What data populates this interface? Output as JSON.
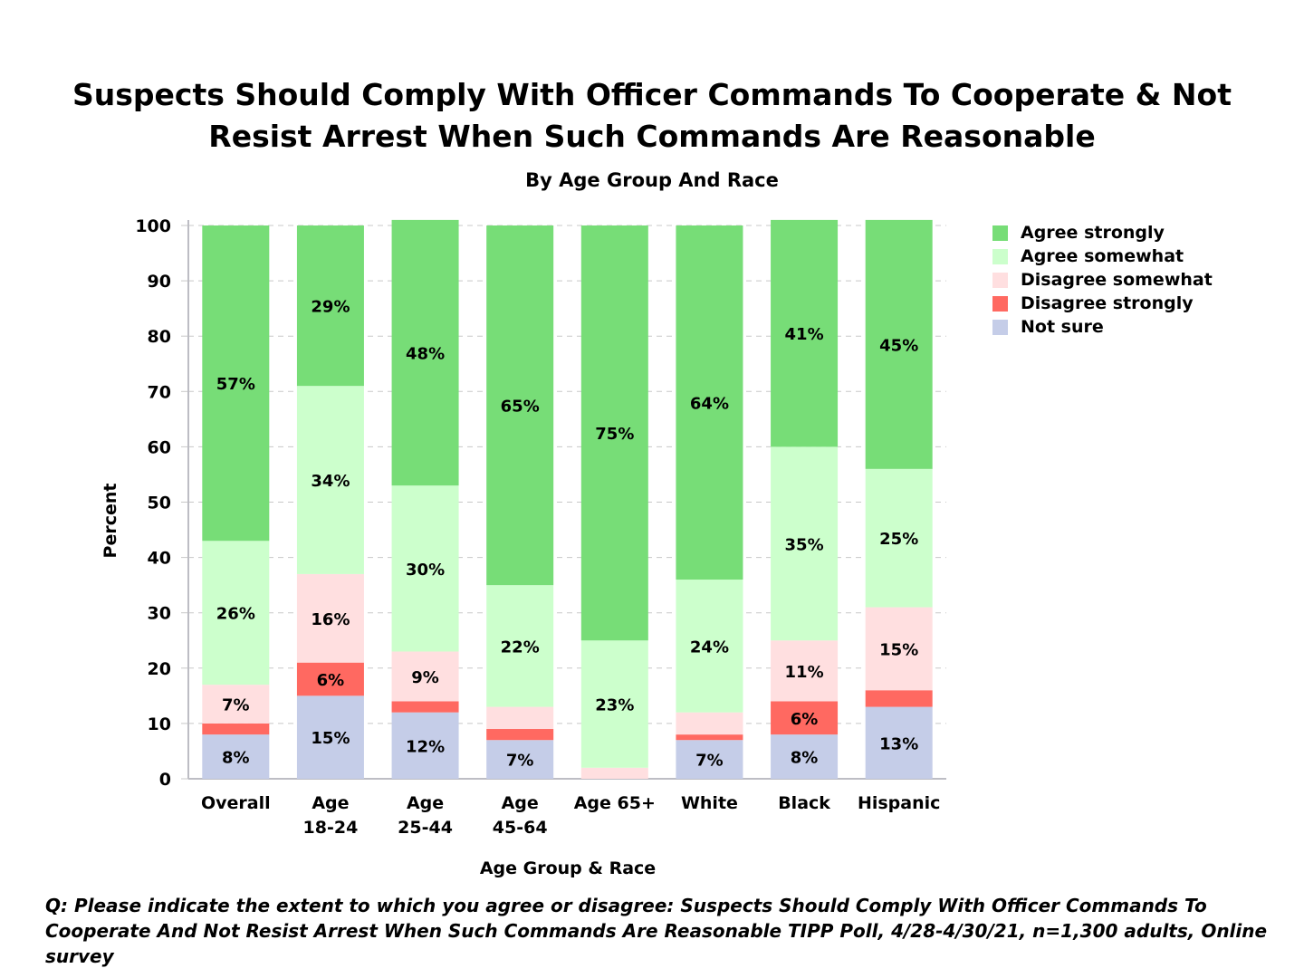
{
  "chart_data": {
    "type": "bar",
    "stacked": true,
    "title": "Suspects Should Comply With Officer Commands To Cooperate & Not Resist Arrest When Such Commands Are Reasonable",
    "title_lines": [
      "Suspects Should Comply With Officer Commands To Cooperate & Not",
      "Resist Arrest When Such Commands Are Reasonable"
    ],
    "subtitle": "By Age Group And Race",
    "xlabel": "Age Group & Race",
    "ylabel": "Percent",
    "ylim": [
      0,
      100
    ],
    "yticks": [
      0,
      10,
      20,
      30,
      40,
      50,
      60,
      70,
      80,
      90,
      100
    ],
    "grid": true,
    "legend_position": "top-right",
    "categories": [
      "Overall",
      "Age 18-24",
      "Age 25-44",
      "Age 45-64",
      "Age 65+",
      "White",
      "Black",
      "Hispanic"
    ],
    "category_lines": [
      [
        "Overall"
      ],
      [
        "Age",
        "18-24"
      ],
      [
        "Age",
        "25-44"
      ],
      [
        "Age",
        "45-64"
      ],
      [
        "Age 65+"
      ],
      [
        "White"
      ],
      [
        "Black"
      ],
      [
        "Hispanic"
      ]
    ],
    "series": [
      {
        "name": "Not sure",
        "color": "#c5cde8",
        "values": [
          8,
          15,
          12,
          7,
          0,
          7,
          8,
          13
        ],
        "labels": [
          "8%",
          "15%",
          "12%",
          "7%",
          "",
          "7%",
          "8%",
          "13%"
        ]
      },
      {
        "name": "Disagree strongly",
        "color": "#ff6961",
        "values": [
          2,
          6,
          2,
          2,
          0,
          1,
          6,
          3
        ],
        "labels": [
          "",
          "6%",
          "",
          "",
          "",
          "",
          "6%",
          ""
        ]
      },
      {
        "name": "Disagree somewhat",
        "color": "#ffdfe0",
        "values": [
          7,
          16,
          9,
          4,
          2,
          4,
          11,
          15
        ],
        "labels": [
          "7%",
          "16%",
          "9%",
          "",
          "",
          "",
          "11%",
          "15%"
        ]
      },
      {
        "name": "Agree somewhat",
        "color": "#ccffcc",
        "values": [
          26,
          34,
          30,
          22,
          23,
          24,
          35,
          25
        ],
        "labels": [
          "26%",
          "34%",
          "30%",
          "22%",
          "23%",
          "24%",
          "35%",
          "25%"
        ]
      },
      {
        "name": "Agree strongly",
        "color": "#77dd77",
        "values": [
          57,
          29,
          48,
          65,
          75,
          64,
          41,
          45
        ],
        "labels": [
          "57%",
          "29%",
          "48%",
          "65%",
          "75%",
          "64%",
          "41%",
          "45%"
        ]
      }
    ],
    "legend_order": [
      "Agree strongly",
      "Agree somewhat",
      "Disagree somewhat",
      "Disagree strongly",
      "Not sure"
    ]
  },
  "footnote": {
    "line1": "Q:  Please indicate the extent to which you agree or disagree:  Suspects Should Comply With Officer Commands To",
    "line2": "Cooperate And Not Resist Arrest When Such Commands Are Reasonable  TIPP Poll, 4/28-4/30/21, n=1,300 adults, Online survey"
  }
}
